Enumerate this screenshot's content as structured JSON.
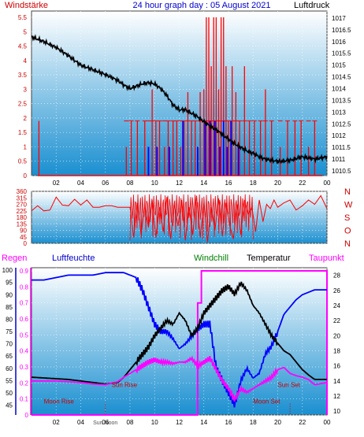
{
  "header": {
    "left_label": "Windstärke",
    "title": "24 hour graph day : 05 August 2021",
    "right_label": "Luftdruck"
  },
  "middle": {
    "direction_labels": [
      "N",
      "W",
      "S",
      "O",
      "N"
    ]
  },
  "bottom_header": {
    "regen": "Regen",
    "luftfeuchte": "Luftfeuchte",
    "windchill": "Windchill",
    "temperatur": "Temperatur",
    "taupunkt": "Taupunkt"
  },
  "annotations": {
    "moon_rise": "Moon Rise",
    "sun_rise": "Sun Rise",
    "moon_set": "Moon Set",
    "sun_set": "Sun Set",
    "sun_noon": "Sun Noon"
  },
  "colors": {
    "plot_top": "#ffffff",
    "plot_bottom": "#1a8fd0",
    "wind": "#ff0000",
    "gust": "#0000ff",
    "pressure": "#000000",
    "humidity": "#0000ff",
    "temperature": "#000000",
    "dewpoint": "#ff00ff",
    "rain": "#ff00ff",
    "windchill": "#008000",
    "red_axis": "#cc0000",
    "blue_axis": "#0000cc",
    "magenta_axis": "#ff00ff"
  },
  "chart_data": [
    {
      "type": "line",
      "name": "wind-pressure",
      "x_ticks": [
        "02",
        "04",
        "06",
        "08",
        "10",
        "12",
        "14",
        "16",
        "18",
        "20",
        "22",
        "00"
      ],
      "y_left_ticks": [
        "0",
        "0.5",
        "1",
        "1.5",
        "2",
        "2.5",
        "3",
        "3.5",
        "4",
        "4.5",
        "5",
        "5.5"
      ],
      "y_left_range": [
        0,
        5.5
      ],
      "y_right_ticks": [
        "1010.5",
        "1011",
        "1011.5",
        "1012",
        "1012.5",
        "1013",
        "1013.5",
        "1014",
        "1014.5",
        "1015",
        "1015.5",
        "1016",
        "1016.5",
        "1017"
      ],
      "y_right_range": [
        1010.3,
        1017.3
      ],
      "x_range": [
        0,
        24
      ],
      "pressure": {
        "x": [
          0,
          1,
          2,
          3,
          4,
          5,
          6,
          7,
          7.5,
          8,
          8.5,
          9,
          9.5,
          10,
          10.5,
          11,
          11.5,
          12,
          12.5,
          13,
          13.5,
          14,
          14.5,
          15,
          15.5,
          16,
          16.5,
          17,
          17.5,
          18,
          18.5,
          19,
          20,
          21,
          22,
          23,
          24
        ],
        "y": [
          1016.2,
          1016.0,
          1015.75,
          1015.4,
          1015.0,
          1014.8,
          1014.6,
          1014.35,
          1014.15,
          1014.0,
          1014.1,
          1014.2,
          1014.25,
          1014.2,
          1014.0,
          1013.7,
          1013.3,
          1013.1,
          1013.1,
          1012.95,
          1012.8,
          1012.6,
          1012.4,
          1012.25,
          1012.05,
          1011.85,
          1011.65,
          1011.5,
          1011.35,
          1011.25,
          1011.1,
          1011.0,
          1010.9,
          1010.95,
          1011.1,
          1011.0,
          1011.1
        ]
      },
      "wind_gust": {
        "note_style": "spikes",
        "x": [
          0.6,
          7.7,
          8.1,
          8.6,
          9.2,
          9.5,
          9.8,
          10.1,
          10.4,
          10.8,
          11.1,
          11.5,
          11.8,
          12.1,
          12.4,
          12.7,
          13.0,
          13.3,
          13.7,
          14.0,
          14.2,
          14.4,
          14.6,
          14.8,
          15.0,
          15.2,
          15.4,
          15.6,
          15.8,
          16.0,
          16.3,
          16.6,
          16.9,
          17.3,
          17.7,
          18.1,
          18.6,
          19.0,
          19.5,
          20.2,
          20.8,
          21.4,
          21.9,
          22.5,
          23.0
        ],
        "y": [
          1.9,
          1.0,
          1.9,
          1.9,
          1.9,
          1.0,
          3.0,
          1.9,
          1.9,
          1.0,
          1.9,
          1.9,
          1.9,
          1.0,
          1.9,
          2.9,
          1.9,
          1.9,
          2.9,
          3.0,
          5.5,
          5.5,
          3.8,
          5.5,
          5.5,
          3.0,
          5.5,
          5.5,
          3.8,
          1.9,
          3.8,
          2.9,
          1.9,
          3.8,
          1.9,
          1.9,
          1.9,
          3.0,
          1.9,
          1.0,
          1.9,
          1.9,
          1.9,
          1.0,
          1.9
        ]
      },
      "wind_avg": {
        "x": [
          9.5,
          10.2,
          11.2,
          12.3,
          13.5,
          14.1,
          14.5,
          14.9,
          15.3,
          15.6,
          15.9,
          16.2,
          16.8
        ],
        "y": [
          1.0,
          1.0,
          1.0,
          1.9,
          1.0,
          1.9,
          1.9,
          1.9,
          1.0,
          1.9,
          1.0,
          1.9,
          1.0
        ]
      }
    },
    {
      "type": "line",
      "name": "wind-direction",
      "y_left_ticks": [
        "0",
        "45",
        "90",
        "135",
        "180",
        "225",
        "270",
        "315",
        "360"
      ],
      "y_range": [
        0,
        360
      ],
      "x_range": [
        0,
        24
      ],
      "direction": {
        "x": [
          0,
          0.5,
          1,
          1.5,
          2,
          2.5,
          3,
          3.5,
          4,
          4.5,
          5,
          5.5,
          6,
          6.5,
          7,
          7.5,
          8,
          8.3,
          8.6,
          8.9,
          9.2,
          9.5,
          9.8,
          10.1,
          10.4,
          10.7,
          11,
          11.3,
          11.6,
          11.9,
          12.2,
          12.5,
          12.8,
          13.1,
          13.4,
          13.7,
          14,
          14.3,
          14.6,
          14.9,
          15.2,
          15.5,
          15.8,
          16.1,
          16.4,
          16.7,
          17,
          17.3,
          17.6,
          17.9,
          18.2,
          18.5,
          18.8,
          19.1,
          19.4,
          19.7,
          20,
          20.5,
          21,
          21.5,
          22,
          22.5,
          23,
          23.5,
          24
        ],
        "y": [
          225,
          260,
          225,
          230,
          320,
          265,
          260,
          305,
          265,
          300,
          250,
          250,
          260,
          260,
          250,
          250,
          250,
          40,
          280,
          60,
          260,
          110,
          300,
          40,
          250,
          80,
          320,
          30,
          270,
          120,
          300,
          20,
          250,
          60,
          330,
          40,
          280,
          10,
          250,
          90,
          310,
          50,
          280,
          120,
          30,
          270,
          60,
          300,
          200,
          250,
          80,
          300,
          150,
          270,
          240,
          300,
          250,
          280,
          300,
          230,
          260,
          300,
          270,
          330,
          240
        ]
      }
    },
    {
      "type": "line",
      "name": "humidity-temperature",
      "y_left_outer_ticks": [
        "45",
        "50",
        "55",
        "60",
        "65",
        "70",
        "75",
        "80",
        "85",
        "90",
        "95",
        "100"
      ],
      "y_left_outer_range": [
        41,
        101
      ],
      "y_left_inner_ticks": [
        "0",
        "0.1",
        "0.2",
        "0.3",
        "0.4",
        "0.5",
        "0.6",
        "0.7",
        "0.8",
        "0.9"
      ],
      "y_left_inner_range": [
        0,
        0.9
      ],
      "y_right_ticks": [
        "10",
        "12",
        "14",
        "16",
        "18",
        "20",
        "22",
        "24",
        "26",
        "28"
      ],
      "y_right_range": [
        9.5,
        29
      ],
      "x_range": [
        0,
        24
      ],
      "humidity": {
        "x": [
          0,
          1,
          2,
          3,
          4,
          5,
          6,
          7,
          7.5,
          8,
          8.5,
          9,
          9.5,
          10,
          10.5,
          11,
          11.5,
          12,
          12.5,
          13,
          13.5,
          14,
          14.5,
          15,
          15.5,
          16,
          16.5,
          17,
          17.5,
          18,
          18.5,
          19,
          19.5,
          20,
          20.5,
          21,
          21.5,
          22,
          22.5,
          23,
          24
        ],
        "y": [
          96,
          96,
          97,
          98,
          98,
          98,
          99,
          99,
          99,
          98,
          97,
          92,
          85,
          78,
          75,
          75,
          72,
          68,
          70,
          73,
          76,
          78,
          78,
          60,
          55,
          50,
          45,
          55,
          60,
          56,
          58,
          66,
          69,
          75,
          82,
          85,
          88,
          90,
          91,
          92,
          92
        ]
      },
      "temperature": {
        "x": [
          0,
          1,
          2,
          3,
          4,
          5,
          6,
          7,
          7.5,
          8,
          8.5,
          9,
          9.5,
          10,
          10.5,
          11,
          11.5,
          12,
          12.5,
          13,
          13.5,
          14,
          14.5,
          15,
          15.5,
          16,
          16.5,
          17,
          17.5,
          18,
          18.5,
          19,
          19.5,
          20,
          20.5,
          21,
          21.5,
          22,
          22.5,
          23,
          24
        ],
        "y": [
          14.5,
          14.4,
          14.3,
          14.2,
          14.0,
          13.8,
          13.6,
          13.8,
          14.5,
          15.5,
          16.5,
          17.5,
          18.5,
          20.0,
          21.0,
          22.0,
          21.5,
          23.0,
          22.0,
          20.0,
          21.0,
          23.0,
          24.0,
          25.0,
          26.0,
          26.5,
          25.5,
          27.0,
          26.0,
          24.0,
          23.0,
          21.5,
          20.0,
          19.0,
          18.0,
          17.5,
          16.5,
          15.5,
          14.8,
          14.2,
          14.2
        ]
      },
      "dewpoint": {
        "x": [
          0,
          1,
          2,
          3,
          4,
          5,
          6,
          7,
          7.5,
          8,
          8.5,
          9,
          9.5,
          10,
          10.5,
          11,
          11.5,
          12,
          12.5,
          13,
          13.5,
          14,
          14.5,
          15,
          15.5,
          16,
          16.5,
          17,
          17.5,
          18,
          18.5,
          19,
          19.5,
          20,
          20.5,
          21,
          21.5,
          22,
          22.5,
          23,
          24
        ],
        "y": [
          14.0,
          14.0,
          14.0,
          13.9,
          13.8,
          13.6,
          13.5,
          13.9,
          14.5,
          15.0,
          15.5,
          16.0,
          16.5,
          16.8,
          16.5,
          16.5,
          16.3,
          16.5,
          16.5,
          17.0,
          16.0,
          16.5,
          17.0,
          15.5,
          14.0,
          13.0,
          11.5,
          13.0,
          12.5,
          13.0,
          13.5,
          14.0,
          14.5,
          15.5,
          15.8,
          15.0,
          14.7,
          14.5,
          14.2,
          13.5,
          13.8
        ]
      },
      "rain": {
        "x": [
          0,
          13.5,
          13.5,
          13.8,
          13.8,
          24,
          24
        ],
        "y": [
          0,
          0,
          0.7,
          0.7,
          0.9,
          0.9,
          0
        ]
      },
      "moon_rise_x": 6.0,
      "sun_rise_x": 6.2,
      "sun_noon_x": 13.6,
      "sun_set_x": 20.6,
      "moon_set_x": 21.0
    }
  ]
}
